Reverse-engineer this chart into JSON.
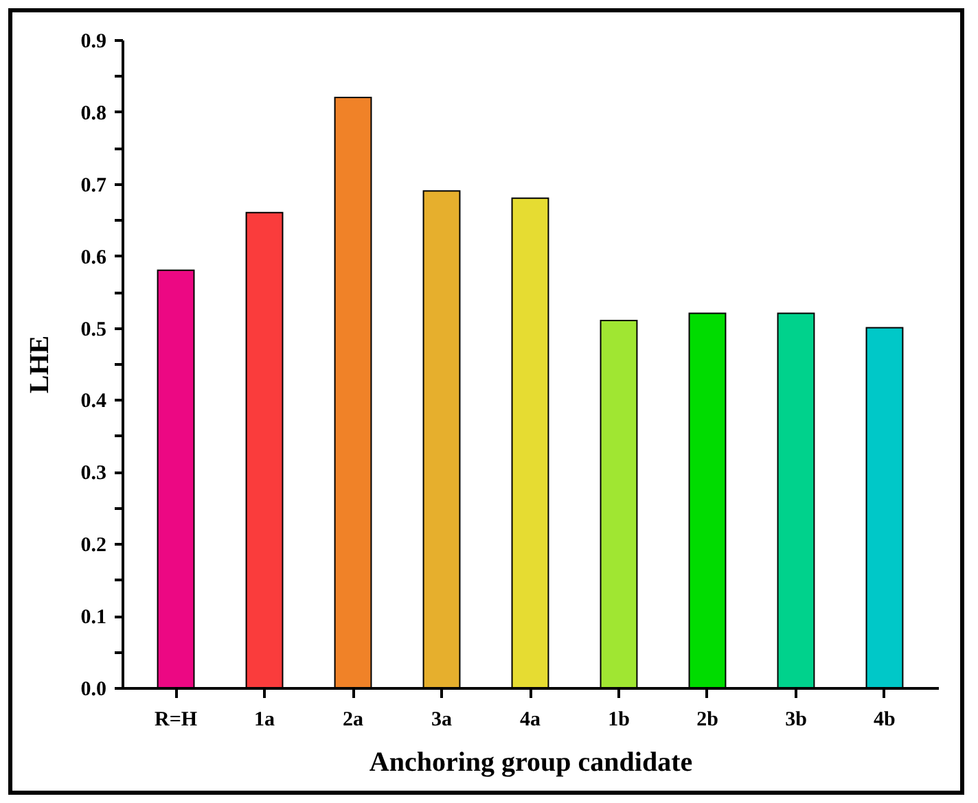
{
  "chart_data": {
    "type": "bar",
    "xlabel": "Anchoring group candidate",
    "ylabel": "LHE",
    "categories": [
      "R=H",
      "1a",
      "2a",
      "3a",
      "4a",
      "1b",
      "2b",
      "3b",
      "4b"
    ],
    "values": [
      0.58,
      0.66,
      0.82,
      0.69,
      0.68,
      0.51,
      0.52,
      0.52,
      0.5
    ],
    "colors": [
      "#ec0883",
      "#fa3c3c",
      "#f08228",
      "#e6af2d",
      "#e6dc32",
      "#a0e632",
      "#00dc00",
      "#00d28c",
      "#00c8c8"
    ],
    "ylim": [
      0,
      0.9
    ],
    "yticks": [
      {
        "value": 0,
        "label": "0.0"
      },
      {
        "value": 0.05,
        "label": null
      },
      0.1,
      {
        "value": 0.15,
        "label": null
      },
      0.2,
      {
        "value": 0.25,
        "label": null
      },
      0.3,
      {
        "value": 0.35,
        "label": null
      },
      0.4,
      {
        "value": 0.45,
        "label": null
      },
      0.5,
      {
        "value": 0.55,
        "label": null
      },
      0.6,
      {
        "value": 0.65,
        "label": null
      },
      0.7,
      {
        "value": 0.75,
        "label": null
      },
      0.8,
      {
        "value": 0.85,
        "label": null
      },
      0.9
    ],
    "grid": false,
    "legend": false
  }
}
